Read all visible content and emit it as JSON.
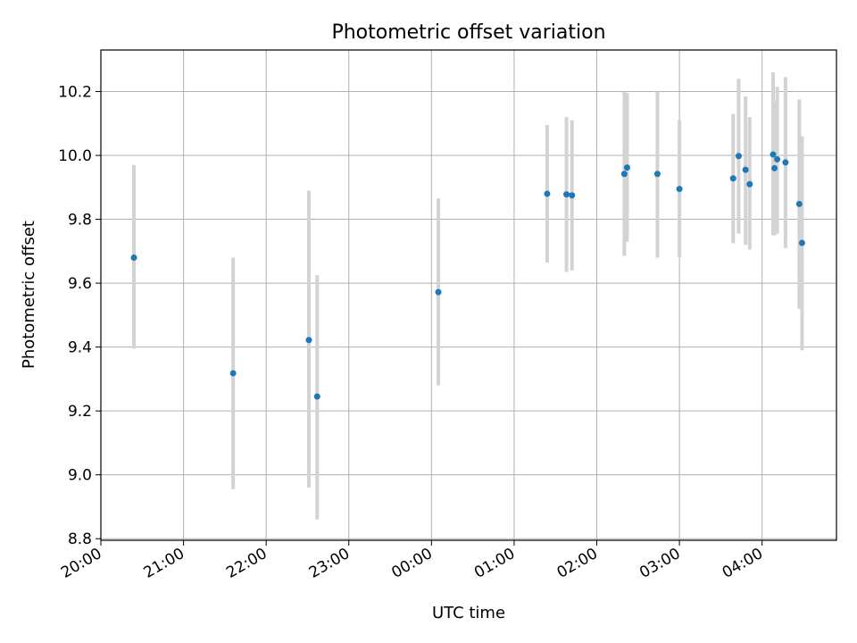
{
  "chart_data": {
    "type": "scatter",
    "title": "Photometric offset variation",
    "xlabel": "UTC time",
    "ylabel": "Photometric offset",
    "x_tick_labels": [
      "20:00",
      "21:00",
      "22:00",
      "23:00",
      "00:00",
      "01:00",
      "02:00",
      "03:00",
      "04:00"
    ],
    "y_tick_labels": [
      "8.8",
      "9.0",
      "9.2",
      "9.4",
      "9.6",
      "9.8",
      "10.0",
      "10.2"
    ],
    "x_ticks": [
      "20:00",
      "21:00",
      "22:00",
      "23:00",
      "24:00",
      "25:00",
      "26:00",
      "27:00",
      "28:00"
    ],
    "y_ticks": [
      8.8,
      9.0,
      9.2,
      9.4,
      9.6,
      9.8,
      10.0,
      10.2
    ],
    "xlim": [
      "20:00",
      "28:54"
    ],
    "ylim": [
      8.795,
      10.33
    ],
    "grid": true,
    "legend": "none",
    "colors": {
      "marker": "#1f77b4",
      "error_bar": "#d3d3d3",
      "grid": "#b0b0b0"
    },
    "points": [
      {
        "x": "20:24",
        "y": 9.68,
        "ylow": 9.395,
        "yhigh": 9.97
      },
      {
        "x": "21:36",
        "y": 9.318,
        "ylow": 8.955,
        "yhigh": 9.68
      },
      {
        "x": "22:31",
        "y": 9.422,
        "ylow": 8.96,
        "yhigh": 9.89
      },
      {
        "x": "22:37",
        "y": 9.245,
        "ylow": 8.86,
        "yhigh": 9.625
      },
      {
        "x": "24:05",
        "y": 9.572,
        "ylow": 9.28,
        "yhigh": 9.865
      },
      {
        "x": "25:24",
        "y": 9.88,
        "ylow": 9.665,
        "yhigh": 10.095
      },
      {
        "x": "25:38",
        "y": 9.878,
        "ylow": 9.635,
        "yhigh": 10.12
      },
      {
        "x": "25:42",
        "y": 9.875,
        "ylow": 9.64,
        "yhigh": 10.11
      },
      {
        "x": "26:20",
        "y": 9.942,
        "ylow": 9.685,
        "yhigh": 10.2
      },
      {
        "x": "26:22",
        "y": 9.962,
        "ylow": 9.73,
        "yhigh": 10.195
      },
      {
        "x": "26:44",
        "y": 9.942,
        "ylow": 9.68,
        "yhigh": 10.2
      },
      {
        "x": "27:00",
        "y": 9.895,
        "ylow": 9.68,
        "yhigh": 10.11
      },
      {
        "x": "27:39",
        "y": 9.928,
        "ylow": 9.725,
        "yhigh": 10.13
      },
      {
        "x": "27:43",
        "y": 9.998,
        "ylow": 9.755,
        "yhigh": 10.24
      },
      {
        "x": "27:48",
        "y": 9.955,
        "ylow": 9.72,
        "yhigh": 10.185
      },
      {
        "x": "27:51",
        "y": 9.91,
        "ylow": 9.705,
        "yhigh": 10.12
      },
      {
        "x": "28:08",
        "y": 10.003,
        "ylow": 9.75,
        "yhigh": 10.26
      },
      {
        "x": "28:09",
        "y": 9.96,
        "ylow": 9.75,
        "yhigh": 10.17
      },
      {
        "x": "28:11",
        "y": 9.988,
        "ylow": 9.755,
        "yhigh": 10.215
      },
      {
        "x": "28:17",
        "y": 9.978,
        "ylow": 9.71,
        "yhigh": 10.245
      },
      {
        "x": "28:27",
        "y": 9.848,
        "ylow": 9.52,
        "yhigh": 10.175
      },
      {
        "x": "28:29",
        "y": 9.726,
        "ylow": 9.39,
        "yhigh": 10.06
      }
    ]
  }
}
